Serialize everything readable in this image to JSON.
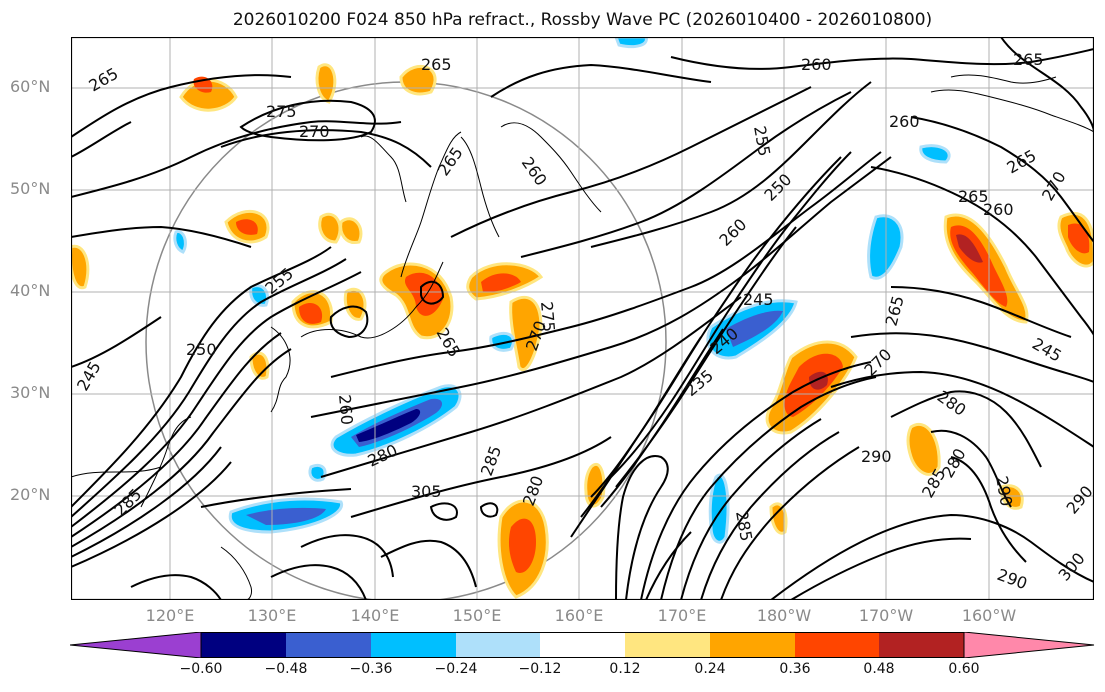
{
  "title": "2026010200 F024 850 hPa refract., Rossby Wave PC (2026010400 - 2026010800)",
  "map": {
    "lat_ticks": [
      "60°N",
      "50°N",
      "40°N",
      "30°N",
      "20°N"
    ],
    "lon_ticks": [
      "120°E",
      "130°E",
      "140°E",
      "150°E",
      "160°E",
      "170°E",
      "180°W",
      "170°W",
      "160°W"
    ],
    "contour_labels": [
      "265",
      "275",
      "270",
      "265",
      "260",
      "265",
      "260",
      "255",
      "250",
      "245",
      "285",
      "280",
      "260",
      "275",
      "270",
      "265",
      "305",
      "285",
      "280",
      "255",
      "250",
      "260",
      "245",
      "240",
      "235",
      "265",
      "270",
      "280",
      "290",
      "285",
      "290",
      "285",
      "280",
      "290",
      "300",
      "290",
      "265",
      "260",
      "265",
      "270",
      "245",
      "265",
      "260"
    ]
  },
  "colorbar": {
    "labels": [
      "−0.60",
      "−0.48",
      "−0.36",
      "−0.24",
      "−0.12",
      "0.12",
      "0.24",
      "0.36",
      "0.48",
      "0.60"
    ],
    "colors": [
      "#9b3fd1",
      "#000080",
      "#3a5fd0",
      "#00bfff",
      "#aee0fa",
      "#ffffff",
      "#ffe680",
      "#ffa500",
      "#ff4500",
      "#b22222",
      "#ff88aa"
    ]
  }
}
